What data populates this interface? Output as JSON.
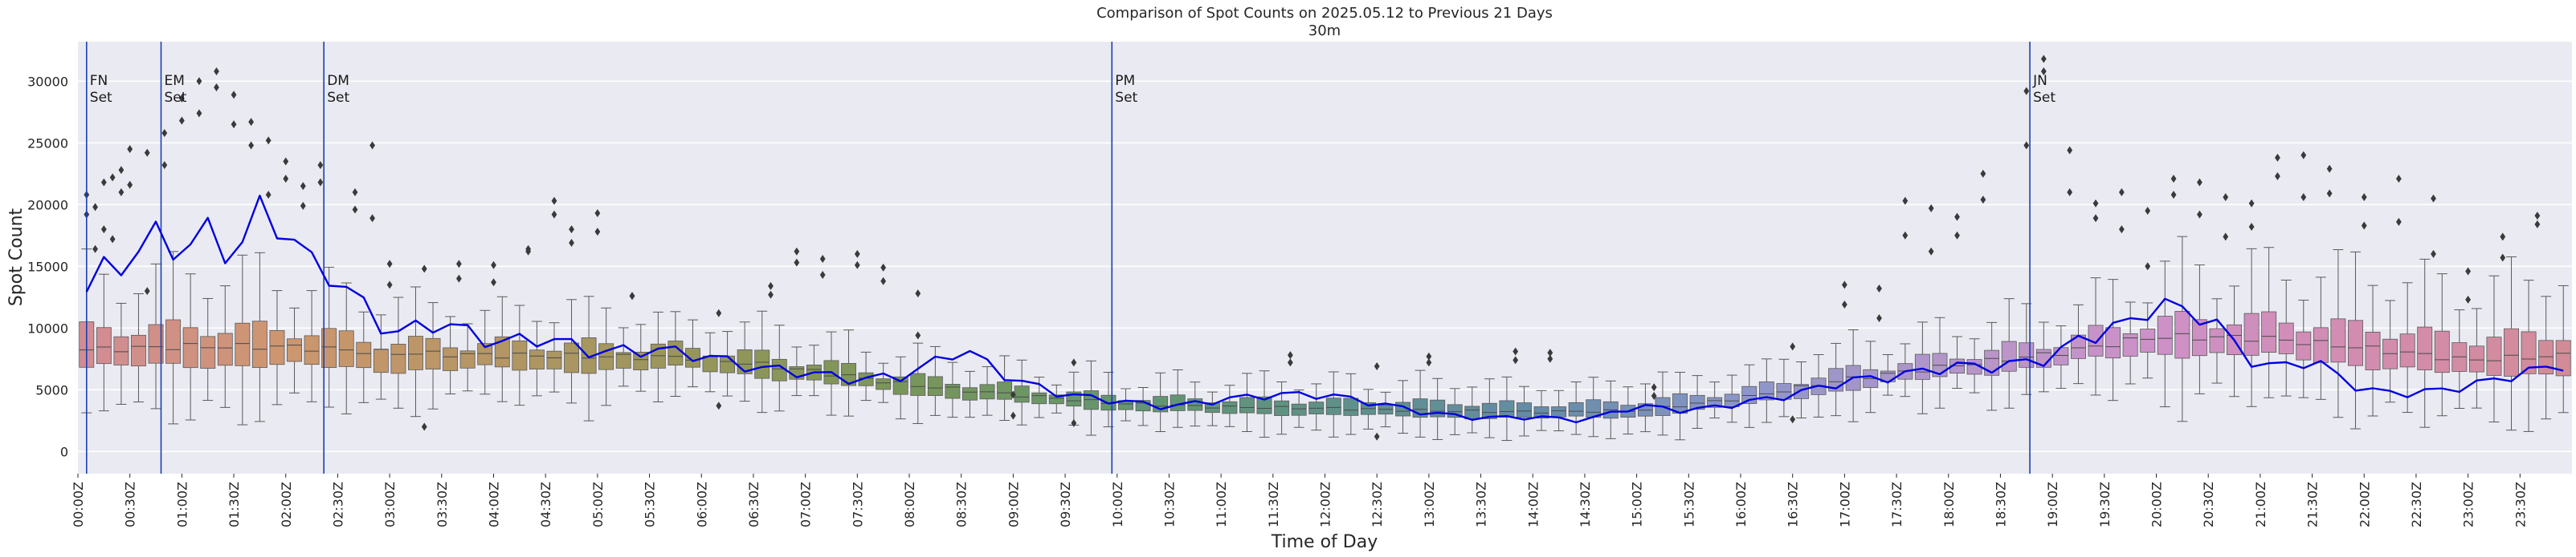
{
  "chart_data": {
    "type": "box",
    "title": "Comparison of Spot Counts on 2025.05.12 to Previous 21 Days",
    "subtitle": "30m",
    "xlabel": "Time of Day",
    "ylabel": "Spot Count",
    "ylim": [
      -1800,
      33200
    ],
    "yticks": [
      0,
      5000,
      10000,
      15000,
      20000,
      25000,
      30000
    ],
    "bin_minutes": 10,
    "grid": true,
    "xtick_labels": [
      "00:00Z",
      "00:30Z",
      "01:00Z",
      "01:30Z",
      "02:00Z",
      "02:30Z",
      "03:00Z",
      "03:30Z",
      "04:00Z",
      "04:30Z",
      "05:00Z",
      "05:30Z",
      "06:00Z",
      "06:30Z",
      "07:00Z",
      "07:30Z",
      "08:00Z",
      "08:30Z",
      "09:00Z",
      "09:30Z",
      "10:00Z",
      "10:30Z",
      "11:00Z",
      "11:30Z",
      "12:00Z",
      "12:30Z",
      "13:00Z",
      "13:30Z",
      "14:00Z",
      "14:30Z",
      "15:00Z",
      "15:30Z",
      "16:00Z",
      "16:30Z",
      "17:00Z",
      "17:30Z",
      "18:00Z",
      "18:30Z",
      "19:00Z",
      "19:30Z",
      "20:00Z",
      "20:30Z",
      "21:00Z",
      "21:30Z",
      "22:00Z",
      "22:30Z",
      "23:00Z",
      "23:30Z"
    ],
    "events": [
      {
        "label": "FN\nSet",
        "time": "00:05Z"
      },
      {
        "label": "EM\nSet",
        "time": "00:48Z"
      },
      {
        "label": "DM\nSet",
        "time": "02:22Z"
      },
      {
        "label": "PM\nSet",
        "time": "09:57Z"
      },
      {
        "label": "JN\nSet",
        "time": "18:47Z"
      }
    ],
    "series": [
      {
        "name": "median_21d",
        "hours": [
          0,
          1,
          2,
          3,
          4,
          5,
          6,
          7,
          8,
          9,
          10,
          11,
          12,
          13,
          14,
          15,
          16,
          17,
          18,
          19,
          20,
          21,
          22,
          23,
          24
        ],
        "values": [
          8200,
          8500,
          8500,
          8000,
          7800,
          7700,
          7600,
          6600,
          5400,
          4600,
          3900,
          3600,
          3500,
          3300,
          3200,
          3300,
          4300,
          5800,
          6900,
          7900,
          9300,
          9200,
          8400,
          7400,
          7800
        ]
      },
      {
        "name": "q1_21d",
        "hours": [
          0,
          1,
          2,
          3,
          4,
          5,
          6,
          7,
          8,
          9,
          10,
          11,
          12,
          13,
          14,
          15,
          16,
          17,
          18,
          19,
          20,
          21,
          22,
          23,
          24
        ],
        "values": [
          6800,
          7000,
          7000,
          6600,
          6700,
          6600,
          6700,
          5700,
          4700,
          4000,
          3400,
          3100,
          3000,
          2800,
          2700,
          2800,
          3700,
          5000,
          6100,
          7000,
          8000,
          7800,
          7000,
          6200,
          6400
        ]
      },
      {
        "name": "q3_21d",
        "hours": [
          0,
          1,
          2,
          3,
          4,
          5,
          6,
          7,
          8,
          9,
          10,
          11,
          12,
          13,
          14,
          15,
          16,
          17,
          18,
          19,
          20,
          21,
          22,
          23,
          24
        ],
        "values": [
          9800,
          10000,
          9900,
          8800,
          8700,
          8600,
          8300,
          7300,
          6000,
          5200,
          4400,
          4200,
          4100,
          4000,
          3800,
          4000,
          4900,
          6500,
          7700,
          8800,
          10600,
          10700,
          10000,
          9100,
          9600
        ]
      },
      {
        "name": "2025.05.12",
        "hours": [
          0,
          0.25,
          0.5,
          0.75,
          1,
          1.25,
          1.5,
          1.75,
          2,
          2.25,
          2.5,
          3,
          3.5,
          4,
          4.5,
          5,
          5.5,
          6,
          6.5,
          7,
          7.5,
          8,
          8.5,
          9,
          9.5,
          10,
          10.5,
          11,
          11.5,
          12,
          12.5,
          13,
          13.5,
          14,
          14.5,
          15,
          15.5,
          16,
          16.5,
          17,
          17.5,
          18,
          18.5,
          19,
          19.25,
          19.5,
          19.75,
          20,
          20.5,
          21,
          21.5,
          22,
          22.5,
          23,
          23.5,
          24
        ],
        "values": [
          12000,
          14800,
          15500,
          17500,
          16200,
          17800,
          15600,
          19500,
          18000,
          15200,
          14000,
          9500,
          10500,
          8800,
          9200,
          8000,
          8300,
          7800,
          6800,
          6400,
          5800,
          6200,
          8400,
          5800,
          4600,
          4100,
          3600,
          4200,
          4600,
          4600,
          3900,
          3100,
          2700,
          2800,
          2500,
          3700,
          3300,
          3900,
          4600,
          5700,
          6100,
          6900,
          6900,
          7600,
          9100,
          9700,
          10500,
          12000,
          10900,
          6700,
          7400,
          4900,
          4700,
          5300,
          6300,
          7200
        ]
      }
    ],
    "outliers": [
      {
        "time": "00:05Z",
        "values": [
          19200,
          20800
        ]
      },
      {
        "time": "00:10Z",
        "values": [
          19800,
          16400
        ]
      },
      {
        "time": "00:15Z",
        "values": [
          21800,
          18000
        ]
      },
      {
        "time": "00:20Z",
        "values": [
          22200,
          17200
        ]
      },
      {
        "time": "00:25Z",
        "values": [
          21000,
          22800
        ]
      },
      {
        "time": "00:30Z",
        "values": [
          24500,
          21600
        ]
      },
      {
        "time": "00:40Z",
        "values": [
          24200,
          13000
        ]
      },
      {
        "time": "00:50Z",
        "values": [
          25800,
          23200
        ]
      },
      {
        "time": "01:00Z",
        "values": [
          28600,
          26800
        ]
      },
      {
        "time": "01:10Z",
        "values": [
          30000,
          27400
        ]
      },
      {
        "time": "01:20Z",
        "values": [
          29500,
          30800
        ]
      },
      {
        "time": "01:30Z",
        "values": [
          26500,
          28900
        ]
      },
      {
        "time": "01:40Z",
        "values": [
          26700,
          24800
        ]
      },
      {
        "time": "01:50Z",
        "values": [
          25200,
          20800
        ]
      },
      {
        "time": "02:00Z",
        "values": [
          23500,
          22100
        ]
      },
      {
        "time": "02:10Z",
        "values": [
          19900,
          21500
        ]
      },
      {
        "time": "02:20Z",
        "values": [
          21800,
          23200
        ]
      },
      {
        "time": "02:40Z",
        "values": [
          21000,
          19600
        ]
      },
      {
        "time": "02:50Z",
        "values": [
          24800,
          18900
        ]
      },
      {
        "time": "03:00Z",
        "values": [
          15200,
          13500
        ]
      },
      {
        "time": "03:20Z",
        "values": [
          2000,
          14800
        ]
      },
      {
        "time": "03:40Z",
        "values": [
          15200,
          14000
        ]
      },
      {
        "time": "04:00Z",
        "values": [
          13700,
          15100
        ]
      },
      {
        "time": "04:20Z",
        "values": [
          16200,
          16400
        ]
      },
      {
        "time": "04:35Z",
        "values": [
          20300,
          19200
        ]
      },
      {
        "time": "04:45Z",
        "values": [
          16900,
          18000
        ]
      },
      {
        "time": "05:00Z",
        "values": [
          19300,
          17800
        ]
      },
      {
        "time": "05:20Z",
        "values": [
          12600,
          12600
        ]
      },
      {
        "time": "06:10Z",
        "values": [
          11200,
          3700
        ]
      },
      {
        "time": "06:40Z",
        "values": [
          12700,
          13400
        ]
      },
      {
        "time": "06:55Z",
        "values": [
          16200,
          15300
        ]
      },
      {
        "time": "07:10Z",
        "values": [
          15600,
          14300
        ]
      },
      {
        "time": "07:30Z",
        "values": [
          16000,
          15100
        ]
      },
      {
        "time": "07:45Z",
        "values": [
          14900,
          13800
        ]
      },
      {
        "time": "08:05Z",
        "values": [
          12800,
          9400
        ]
      },
      {
        "time": "09:00Z",
        "values": [
          4600,
          2900
        ]
      },
      {
        "time": "09:35Z",
        "values": [
          7200,
          2300
        ]
      },
      {
        "time": "11:40Z",
        "values": [
          7800,
          7200
        ]
      },
      {
        "time": "12:30Z",
        "values": [
          1200,
          6900
        ]
      },
      {
        "time": "13:00Z",
        "values": [
          7700,
          7200
        ]
      },
      {
        "time": "13:50Z",
        "values": [
          8100,
          7400
        ]
      },
      {
        "time": "14:10Z",
        "values": [
          7500,
          8000
        ]
      },
      {
        "time": "15:10Z",
        "values": [
          4500,
          5200
        ]
      },
      {
        "time": "16:30Z",
        "values": [
          8500,
          2600
        ]
      },
      {
        "time": "17:00Z",
        "values": [
          13500,
          11900
        ]
      },
      {
        "time": "17:20Z",
        "values": [
          13200,
          10800
        ]
      },
      {
        "time": "17:35Z",
        "values": [
          20300,
          17500
        ]
      },
      {
        "time": "17:50Z",
        "values": [
          19700,
          16200
        ]
      },
      {
        "time": "18:05Z",
        "values": [
          19000,
          17500
        ]
      },
      {
        "time": "18:20Z",
        "values": [
          20400,
          22500
        ]
      },
      {
        "time": "18:45Z",
        "values": [
          24800,
          29200
        ]
      },
      {
        "time": "18:55Z",
        "values": [
          31800,
          30800
        ]
      },
      {
        "time": "19:10Z",
        "values": [
          24400,
          21000
        ]
      },
      {
        "time": "19:25Z",
        "values": [
          20100,
          18900
        ]
      },
      {
        "time": "19:40Z",
        "values": [
          21000,
          18000
        ]
      },
      {
        "time": "19:55Z",
        "values": [
          19500,
          15000
        ]
      },
      {
        "time": "20:10Z",
        "values": [
          22100,
          20800
        ]
      },
      {
        "time": "20:25Z",
        "values": [
          21800,
          19200
        ]
      },
      {
        "time": "20:40Z",
        "values": [
          20600,
          17400
        ]
      },
      {
        "time": "20:55Z",
        "values": [
          20100,
          18200
        ]
      },
      {
        "time": "21:10Z",
        "values": [
          23800,
          22300
        ]
      },
      {
        "time": "21:25Z",
        "values": [
          24000,
          20600
        ]
      },
      {
        "time": "21:40Z",
        "values": [
          22900,
          20900
        ]
      },
      {
        "time": "22:00Z",
        "values": [
          20600,
          18300
        ]
      },
      {
        "time": "22:20Z",
        "values": [
          22100,
          18600
        ]
      },
      {
        "time": "22:40Z",
        "values": [
          20500,
          16000
        ]
      },
      {
        "time": "23:00Z",
        "values": [
          14600,
          12300
        ]
      },
      {
        "time": "23:20Z",
        "values": [
          17400,
          15700
        ]
      },
      {
        "time": "23:40Z",
        "values": [
          19100,
          18400
        ]
      }
    ]
  }
}
